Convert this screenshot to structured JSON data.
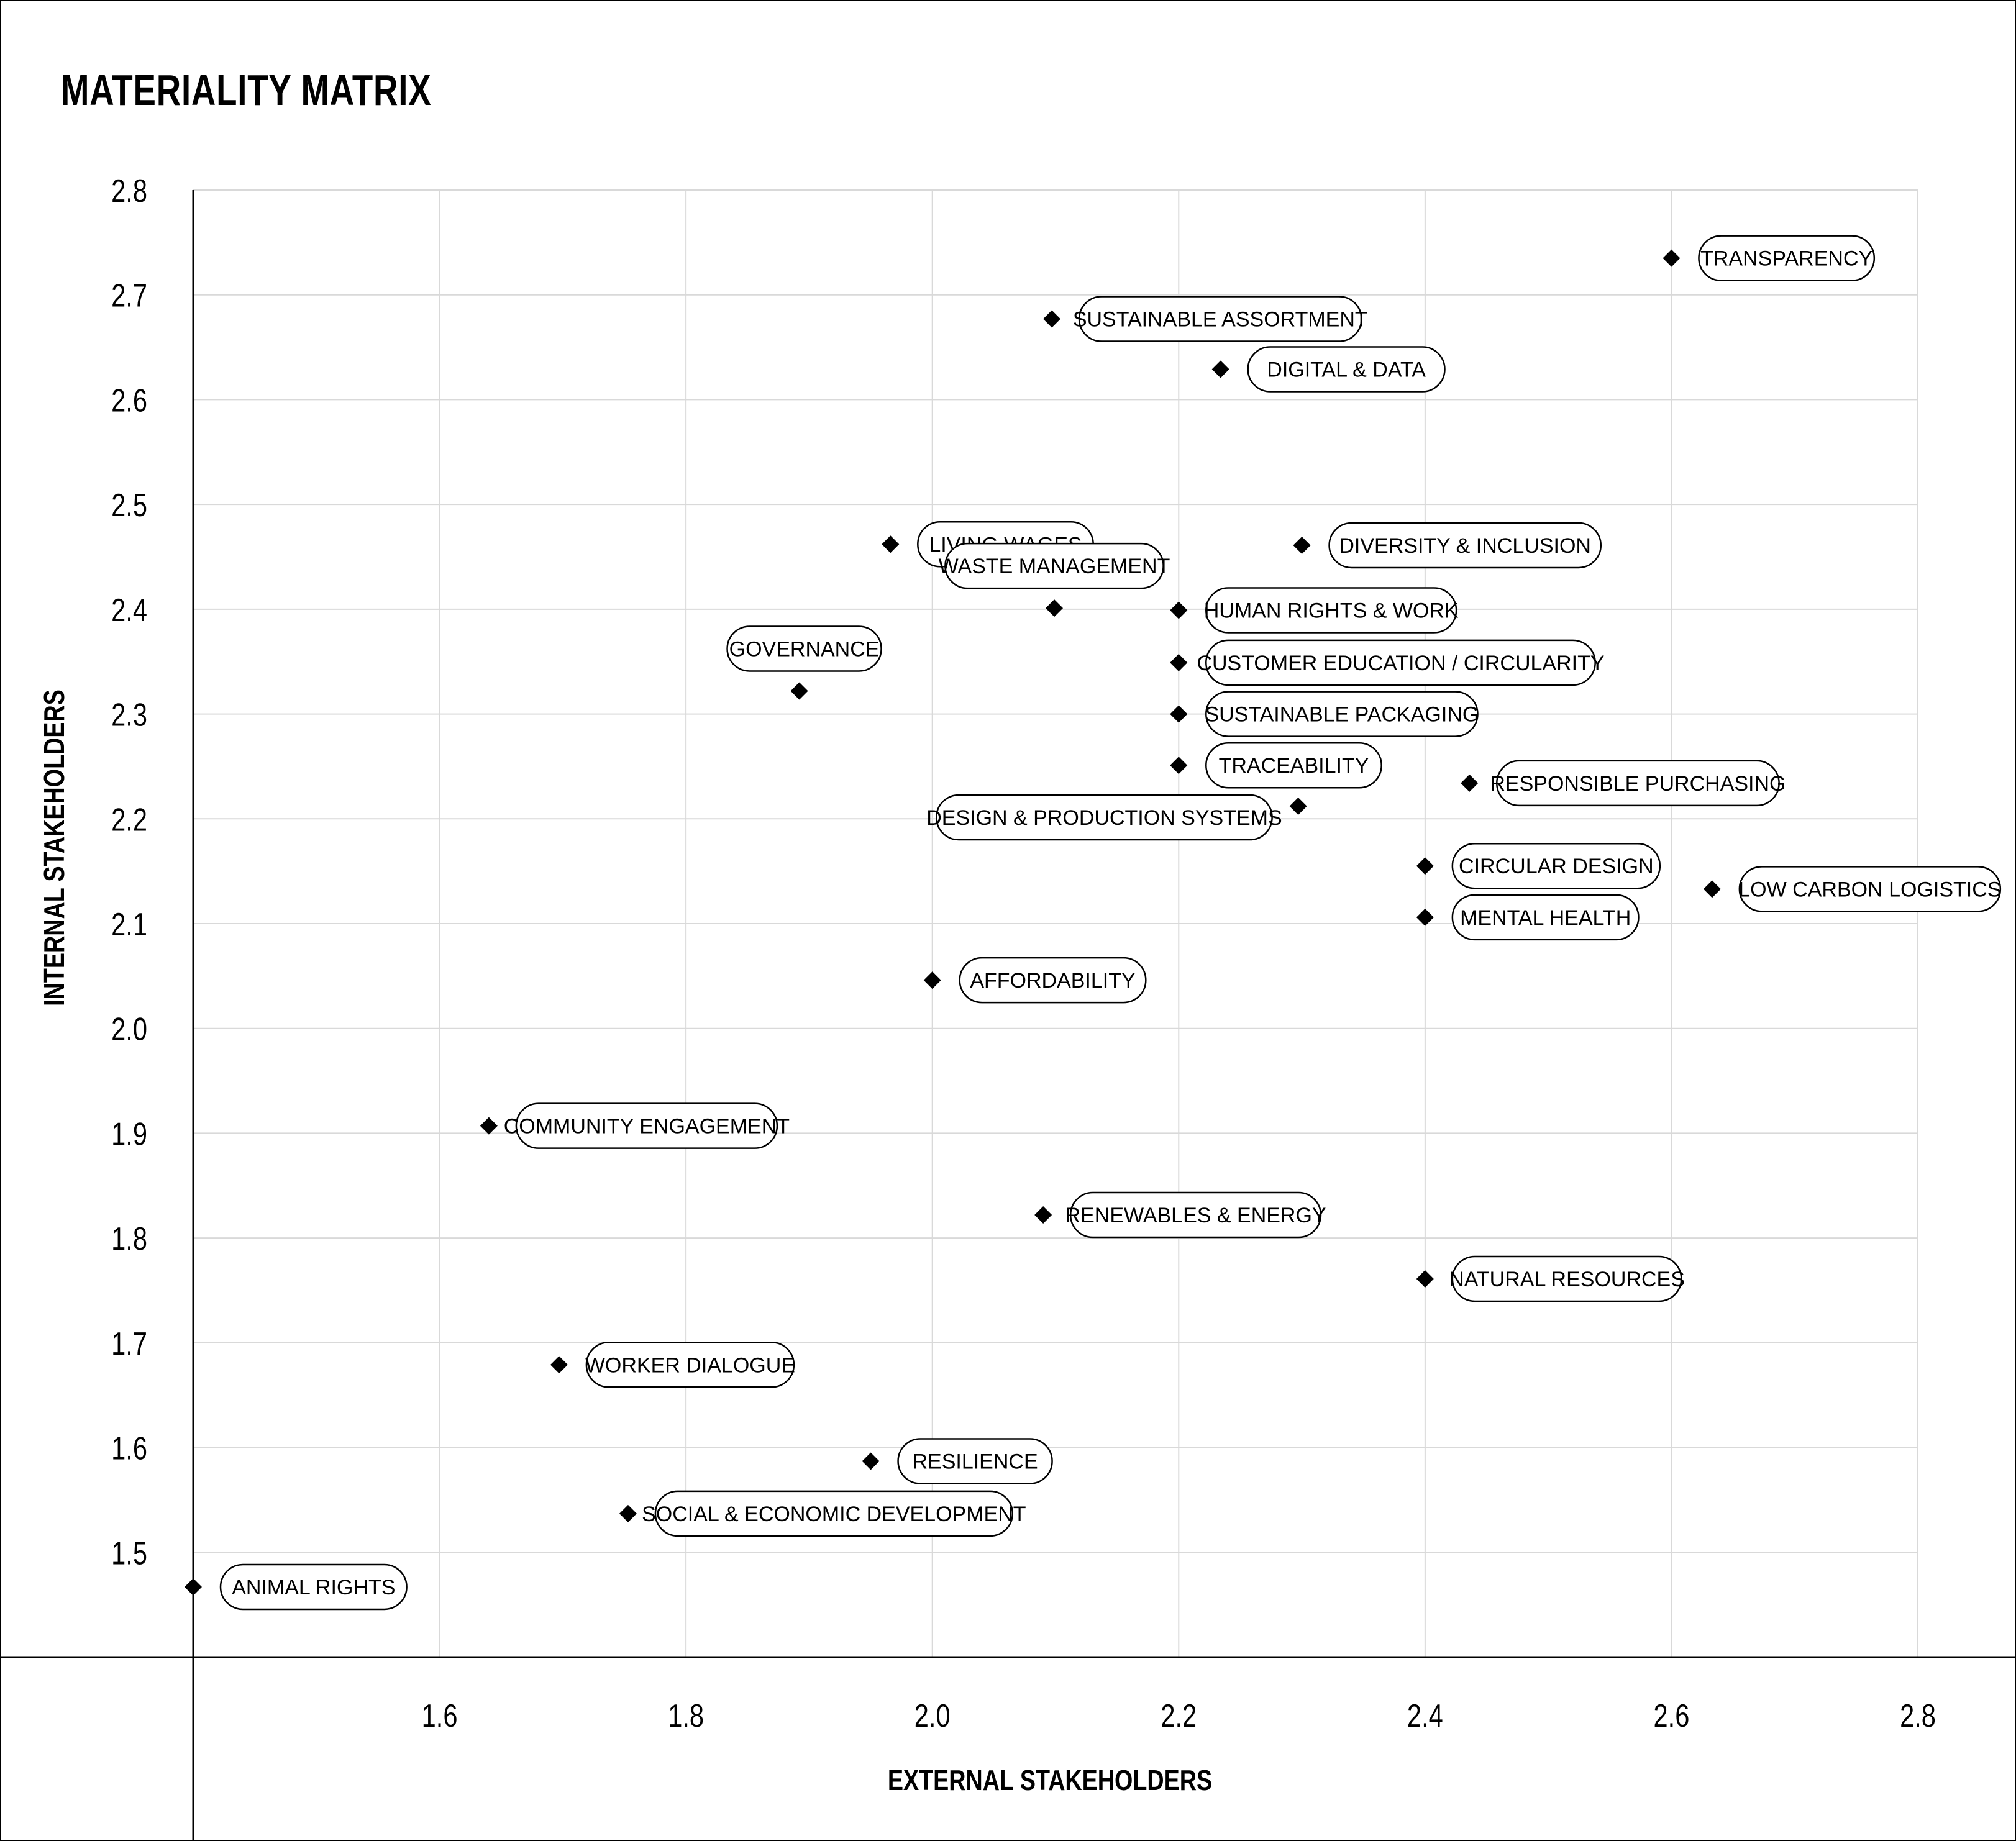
{
  "chart_data": {
    "type": "scatter",
    "title": "MATERIALITY MATRIX",
    "xlabel": "EXTERNAL STAKEHOLDERS",
    "ylabel": "INTERNAL STAKEHOLDERS",
    "xlim": [
      1.4,
      2.8
    ],
    "ylim": [
      1.4,
      2.8
    ],
    "xticks": [
      "1.6",
      "1.8",
      "2.0",
      "2.2",
      "2.4",
      "2.6",
      "2.8"
    ],
    "yticks": [
      "1.5",
      "1.6",
      "1.7",
      "1.8",
      "1.9",
      "2.0",
      "2.1",
      "2.2",
      "2.3",
      "2.4",
      "2.5",
      "2.6",
      "2.7",
      "2.8"
    ],
    "grid": true,
    "marker": "diamond",
    "points": [
      {
        "label": "TRANSPARENCY",
        "x": 2.6,
        "y": 2.735
      },
      {
        "label": "SUSTAINABLE ASSORTMENT",
        "x": 2.097,
        "y": 2.677
      },
      {
        "label": "DIGITAL & DATA",
        "x": 2.234,
        "y": 2.629
      },
      {
        "label": "LIVING WAGES",
        "x": 1.966,
        "y": 2.462
      },
      {
        "label": "DIVERSITY & INCLUSION",
        "x": 2.3,
        "y": 2.461
      },
      {
        "label": "WASTE MANAGEMENT",
        "x": 2.099,
        "y": 2.401
      },
      {
        "label": "HUMAN RIGHTS & WORK",
        "x": 2.2,
        "y": 2.399
      },
      {
        "label": "GOVERNANCE",
        "x": 1.892,
        "y": 2.322
      },
      {
        "label": "CUSTOMER EDUCATION / CIRCULARITY",
        "x": 2.2,
        "y": 2.349
      },
      {
        "label": "SUSTAINABLE PACKAGING",
        "x": 2.2,
        "y": 2.3
      },
      {
        "label": "TRACEABILITY",
        "x": 2.2,
        "y": 2.251
      },
      {
        "label": "RESPONSIBLE PURCHASING",
        "x": 2.436,
        "y": 2.234
      },
      {
        "label": "DESIGN & PRODUCTION SYSTEMS",
        "x": 2.297,
        "y": 2.212
      },
      {
        "label": "CIRCULAR DESIGN",
        "x": 2.4,
        "y": 2.155
      },
      {
        "label": "LOW CARBON LOGISTICS",
        "x": 2.633,
        "y": 2.133
      },
      {
        "label": "MENTAL HEALTH",
        "x": 2.4,
        "y": 2.106
      },
      {
        "label": "AFFORDABILITY",
        "x": 2.0,
        "y": 2.046
      },
      {
        "label": "COMMUNITY ENGAGEMENT",
        "x": 1.64,
        "y": 1.907
      },
      {
        "label": "RENEWABLES & ENERGY",
        "x": 2.09,
        "y": 1.822
      },
      {
        "label": "NATURAL RESOURCES",
        "x": 2.4,
        "y": 1.761
      },
      {
        "label": "WORKER DIALOGUE",
        "x": 1.697,
        "y": 1.679
      },
      {
        "label": "RESILIENCE",
        "x": 1.95,
        "y": 1.587
      },
      {
        "label": "SOCIAL & ECONOMIC DEVELOPMENT",
        "x": 1.753,
        "y": 1.537
      },
      {
        "label": "ANIMAL RIGHTS",
        "x": 1.4,
        "y": 1.467
      }
    ]
  }
}
